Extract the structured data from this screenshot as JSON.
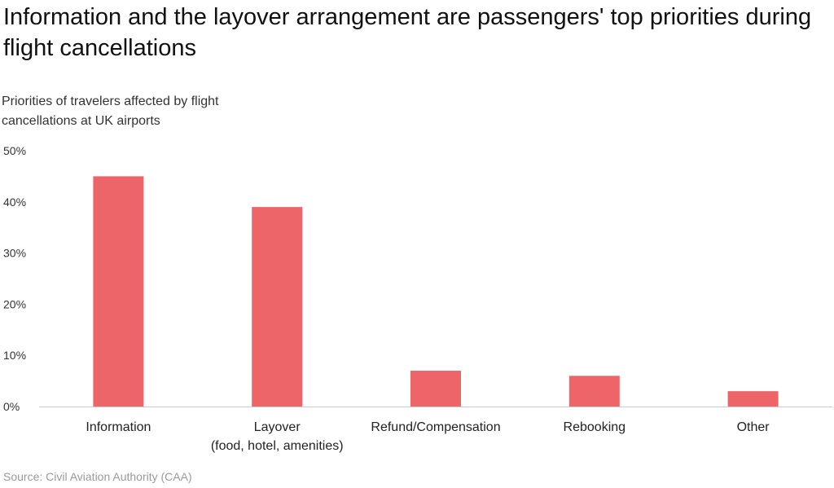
{
  "title": "Information and the layover arrangement are passengers' top priorities during flight cancellations",
  "subtitle": "Priorities of travelers affected by flight cancellations at UK airports",
  "source": "Source: Civil Aviation Authority (CAA)",
  "chart_data": {
    "type": "bar",
    "categories": [
      [
        "Information"
      ],
      [
        "Layover",
        "(food, hotel, amenities)"
      ],
      [
        "Refund/Compensation"
      ],
      [
        "Rebooking"
      ],
      [
        "Other"
      ]
    ],
    "values": [
      45,
      39,
      7,
      6,
      3
    ],
    "ylim": [
      0,
      50
    ],
    "yticks": [
      0,
      10,
      20,
      30,
      40,
      50
    ],
    "ytick_labels": [
      "0%",
      "10%",
      "20%",
      "30%",
      "40%",
      "50%"
    ],
    "grid": false,
    "bar_color": "#ee6569",
    "axis_color": "#cccccc"
  }
}
